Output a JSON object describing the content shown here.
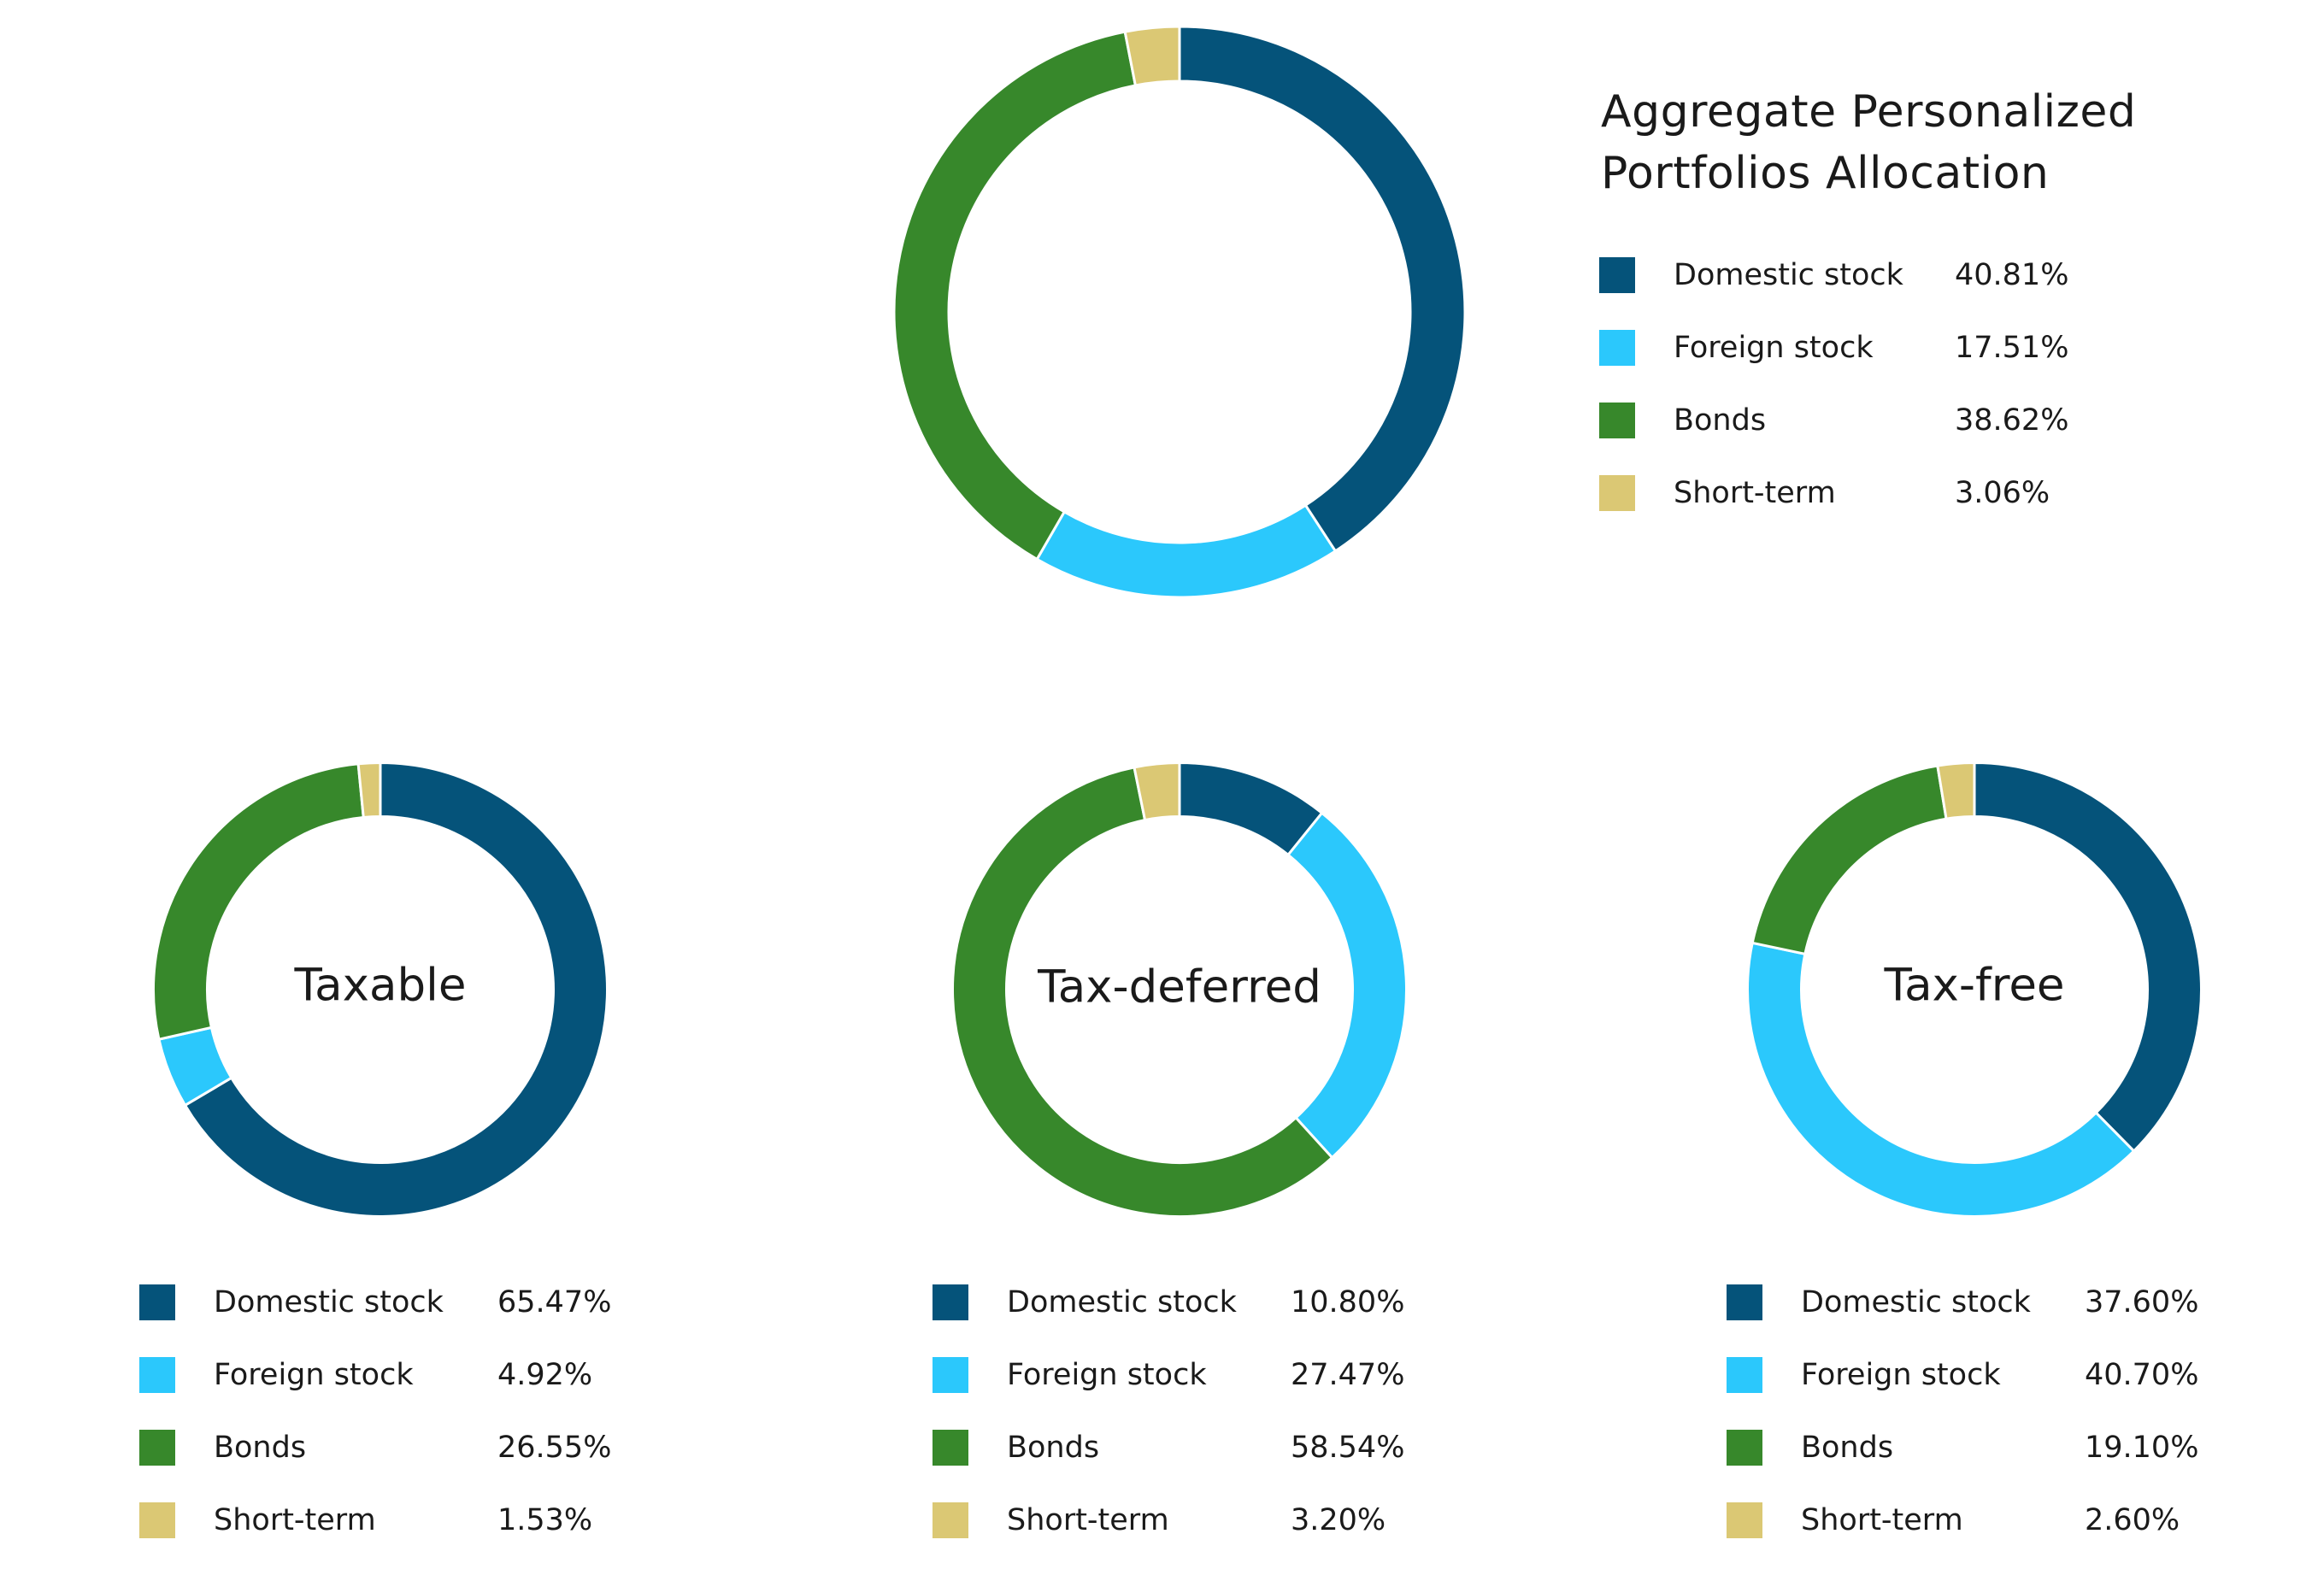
{
  "title": "Aggregate Personalized Portfolios Allocation",
  "colors": {
    "Domestic stock": "#05537a",
    "Foreign stock": "#2bc8fc",
    "Bonds": "#37882b",
    "Short-term": "#dbc874"
  },
  "chart_data": [
    {
      "type": "pie",
      "title": "Aggregate Personalized Portfolios Allocation",
      "categories": [
        "Domestic stock",
        "Foreign stock",
        "Bonds",
        "Short-term"
      ],
      "values": [
        40.81,
        17.51,
        38.62,
        3.06
      ],
      "value_labels": [
        "40.81%",
        "17.51%",
        "38.62%",
        "3.06%"
      ],
      "legend": "right"
    },
    {
      "type": "pie",
      "title": "Taxable",
      "categories": [
        "Domestic stock",
        "Foreign stock",
        "Bonds",
        "Short-term"
      ],
      "values": [
        65.47,
        4.92,
        26.55,
        1.53
      ],
      "value_labels": [
        "65.47%",
        "4.92%",
        "26.55%",
        "1.53%"
      ],
      "legend": "bottom"
    },
    {
      "type": "pie",
      "title": "Tax-deferred",
      "categories": [
        "Domestic stock",
        "Foreign stock",
        "Bonds",
        "Short-term"
      ],
      "values": [
        10.8,
        27.47,
        58.54,
        3.2
      ],
      "value_labels": [
        "10.80%",
        "27.47%",
        "58.54%",
        "3.20%"
      ],
      "legend": "bottom"
    },
    {
      "type": "pie",
      "title": "Tax-free",
      "categories": [
        "Domestic stock",
        "Foreign stock",
        "Bonds",
        "Short-term"
      ],
      "values": [
        37.6,
        40.7,
        19.1,
        2.6
      ],
      "value_labels": [
        "37.60%",
        "40.70%",
        "19.10%",
        "2.60%"
      ],
      "legend": "bottom"
    }
  ]
}
